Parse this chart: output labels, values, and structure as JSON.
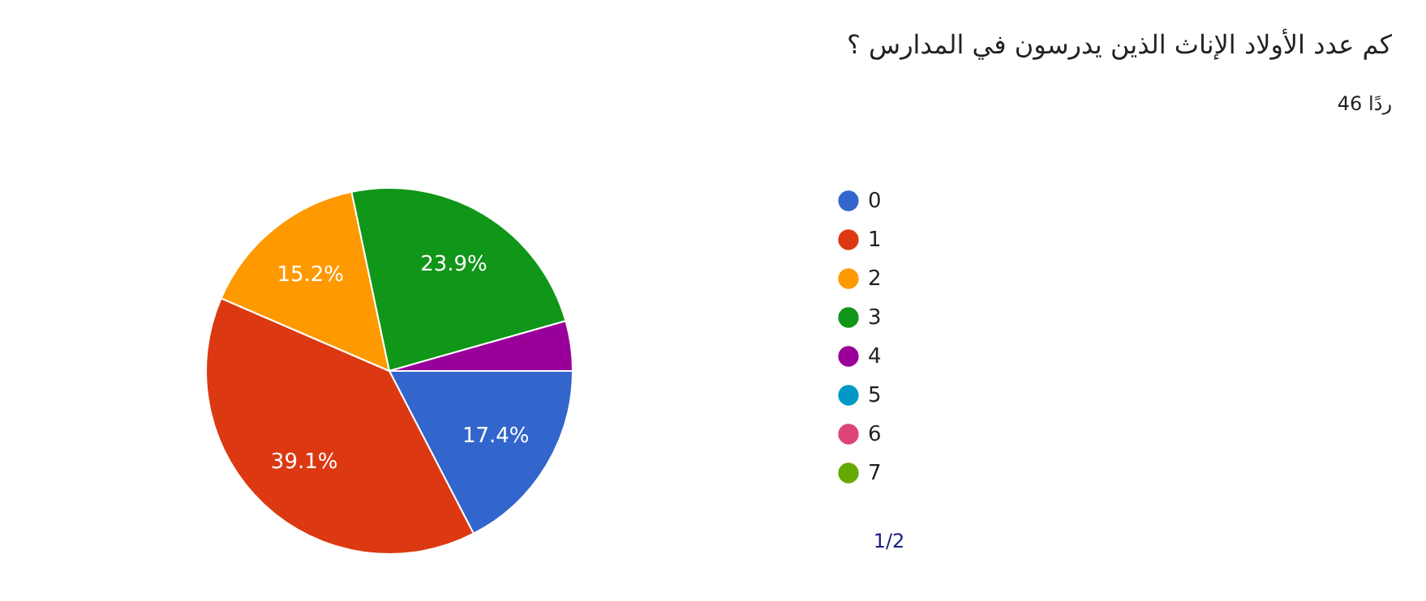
{
  "chart_data": {
    "type": "pie",
    "title": "كم عدد الأولاد الإناث الذين يدرسون في المدارس ؟",
    "subtitle": "46 ردًا",
    "categories": [
      "0",
      "1",
      "2",
      "3",
      "4",
      "5",
      "6",
      "7"
    ],
    "values": [
      17.4,
      39.1,
      15.2,
      23.9,
      4.4,
      0,
      0,
      0
    ],
    "colors": [
      "#3366cc",
      "#dc3912",
      "#ff9900",
      "#109618",
      "#990099",
      "#0099c6",
      "#dd4477",
      "#66aa00"
    ],
    "value_labels": [
      "17.4%",
      "39.1%",
      "15.2%",
      "23.9%",
      null,
      null,
      null,
      null
    ],
    "legend": "right",
    "annotations": [
      "1/2"
    ]
  }
}
